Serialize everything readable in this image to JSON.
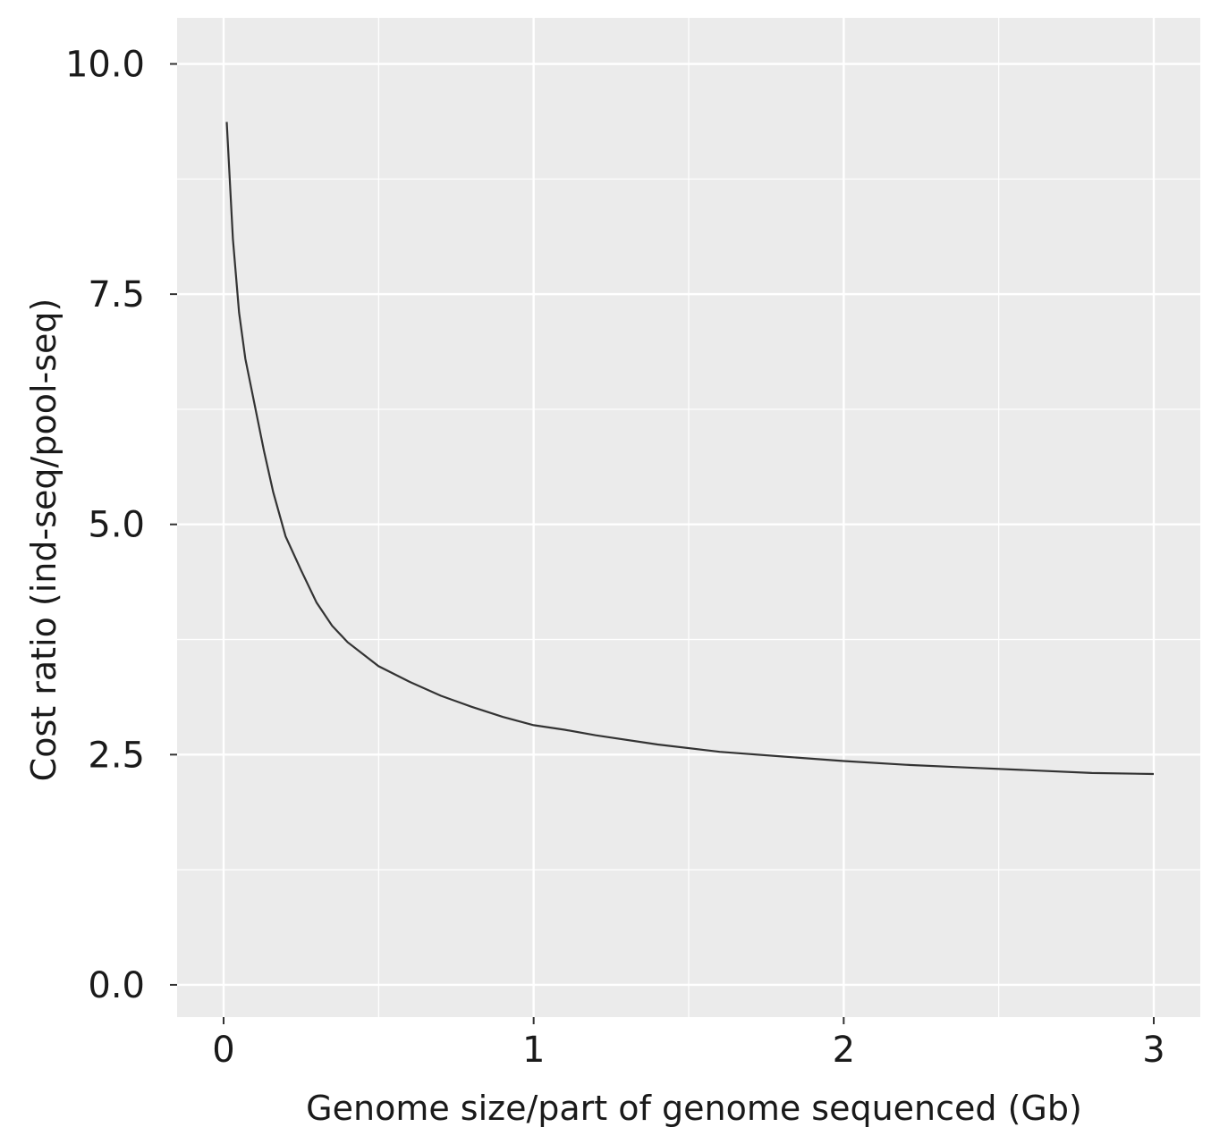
{
  "chart_data": {
    "type": "line",
    "title": "",
    "xlabel": "Genome size/part of genome sequenced (Gb)",
    "ylabel": "Cost ratio (ind-seq/pool-seq)",
    "xlim": [
      -0.15,
      3.15
    ],
    "ylim": [
      -0.35,
      10.5
    ],
    "x_ticks": [
      0,
      1,
      2,
      3
    ],
    "x_tick_labels": [
      "0",
      "1",
      "2",
      "3"
    ],
    "y_ticks": [
      0,
      2.5,
      5,
      7.5,
      10
    ],
    "y_tick_labels": [
      "0.0",
      "2.5",
      "5.0",
      "7.5",
      "10.0"
    ],
    "x_minor_ticks": [
      0.5,
      1.5,
      2.5
    ],
    "y_minor_ticks": [
      1.25,
      3.75,
      6.25,
      8.75
    ],
    "grid": true,
    "legend": "none",
    "colors": {
      "panel": "#ebebeb",
      "grid": "#ffffff",
      "line": "#333333"
    },
    "series": [
      {
        "x": [
          0.01,
          0.03,
          0.05,
          0.07,
          0.1,
          0.13,
          0.16,
          0.2,
          0.25,
          0.3,
          0.35,
          0.4,
          0.5,
          0.6,
          0.7,
          0.8,
          0.9,
          1.0,
          1.1,
          1.2,
          1.4,
          1.6,
          1.8,
          2.0,
          2.2,
          2.4,
          2.6,
          2.8,
          3.0
        ],
        "y": [
          9.37,
          8.1,
          7.3,
          6.8,
          6.3,
          5.8,
          5.35,
          4.87,
          4.5,
          4.15,
          3.9,
          3.72,
          3.46,
          3.29,
          3.14,
          3.02,
          2.91,
          2.82,
          2.77,
          2.71,
          2.61,
          2.53,
          2.48,
          2.43,
          2.39,
          2.36,
          2.33,
          2.3,
          2.29
        ]
      }
    ]
  }
}
